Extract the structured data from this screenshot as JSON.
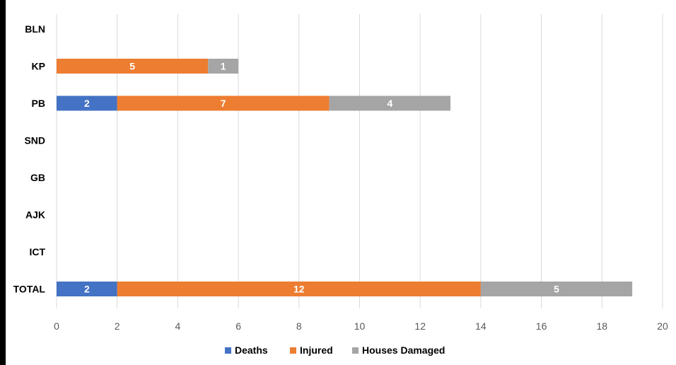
{
  "chart_data": {
    "type": "bar",
    "orientation": "horizontal",
    "stacked": true,
    "categories": [
      "BLN",
      "KP",
      "PB",
      "SND",
      "GB",
      "AJK",
      "ICT",
      "TOTAL"
    ],
    "series": [
      {
        "name": "Deaths",
        "color": "#4472C4",
        "values": [
          0,
          0,
          2,
          0,
          0,
          0,
          0,
          2
        ]
      },
      {
        "name": "Injured",
        "color": "#ED7D31",
        "values": [
          0,
          5,
          7,
          0,
          0,
          0,
          0,
          12
        ]
      },
      {
        "name": "Houses Damaged",
        "color": "#A5A5A5",
        "values": [
          0,
          1,
          4,
          0,
          0,
          0,
          0,
          5
        ]
      }
    ],
    "xlim": [
      0,
      20
    ],
    "xticks": [
      "0",
      "2",
      "4",
      "6",
      "8",
      "10",
      "12",
      "14",
      "16",
      "18",
      "20"
    ],
    "grid": true,
    "legend_position": "bottom"
  }
}
